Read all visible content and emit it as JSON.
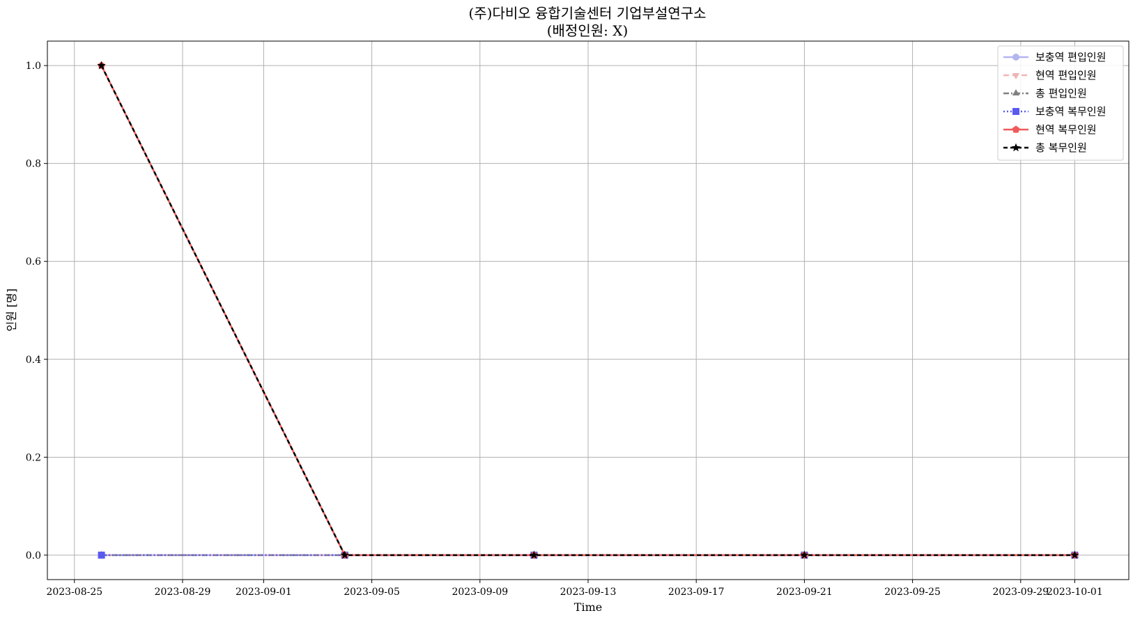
{
  "chart_data": {
    "type": "line",
    "title": "(주)다비오 융합기술센터 기업부설연구소",
    "subtitle": "(배정인원: X)",
    "xlabel": "Time",
    "ylabel": "인원 [명]",
    "xlim": [
      "2023-08-24",
      "2023-10-03"
    ],
    "ylim": [
      -0.05,
      1.05
    ],
    "grid": true,
    "legend_position": "top-right",
    "x_ticks": [
      "2023-08-25",
      "2023-08-29",
      "2023-09-01",
      "2023-09-05",
      "2023-09-09",
      "2023-09-13",
      "2023-09-17",
      "2023-09-21",
      "2023-09-25",
      "2023-09-29",
      "2023-10-01"
    ],
    "y_ticks": [
      0.0,
      0.2,
      0.4,
      0.6,
      0.8,
      1.0
    ],
    "y_tick_labels": [
      "0.0",
      "0.2",
      "0.4",
      "0.6",
      "0.8",
      "1.0"
    ],
    "x": [
      "2023-08-26",
      "2023-09-04",
      "2023-09-11",
      "2023-09-21",
      "2023-10-01"
    ],
    "series": [
      {
        "name": "보충역 편입인원",
        "values": [
          0,
          0,
          0,
          0,
          0
        ],
        "color": "#b4b4f0",
        "dash": "",
        "marker": "circle"
      },
      {
        "name": "현역 편입인원",
        "values": [
          0,
          0,
          0,
          0,
          0
        ],
        "color": "#f0b4b4",
        "dash": "8,5",
        "marker": "triangle-down"
      },
      {
        "name": "총 편입인원",
        "values": [
          0,
          0,
          0,
          0,
          0
        ],
        "color": "#808080",
        "dash": "8,3,2,3",
        "marker": "triangle-up"
      },
      {
        "name": "보충역 복무인원",
        "values": [
          0,
          0,
          0,
          0,
          0
        ],
        "color": "#5a5af0",
        "dash": "2,3",
        "marker": "square"
      },
      {
        "name": "현역 복무인원",
        "values": [
          1,
          0,
          0,
          0,
          0
        ],
        "color": "#f05a5a",
        "dash": "",
        "marker": "pentagon"
      },
      {
        "name": "총 복무인원",
        "values": [
          1,
          0,
          0,
          0,
          0
        ],
        "color": "#000000",
        "dash": "6,4",
        "marker": "star"
      }
    ]
  }
}
